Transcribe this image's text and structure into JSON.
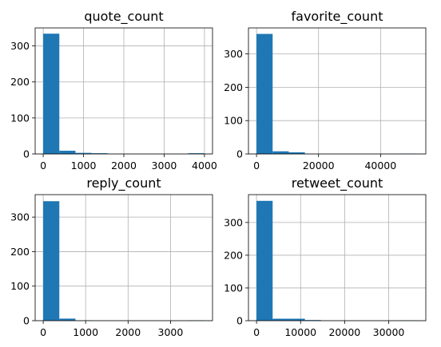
{
  "chart_data": [
    {
      "type": "bar",
      "title": "quote_count",
      "xlabel": "",
      "ylabel": "",
      "grid": true,
      "bar_color": "#1f77b4",
      "xlim": [
        -200,
        4200
      ],
      "ylim": [
        0,
        350
      ],
      "xticks": [
        0,
        1000,
        2000,
        3000,
        4000
      ],
      "xtick_labels": [
        "0",
        "1000",
        "2000",
        "3000",
        "4000"
      ],
      "yticks": [
        0,
        100,
        200,
        300
      ],
      "ytick_labels": [
        "0",
        "100",
        "200",
        "300"
      ],
      "bin_edges": [
        0,
        400,
        800,
        1200,
        1600,
        2000,
        2400,
        2800,
        3200,
        3600,
        4000
      ],
      "values": [
        334,
        9,
        3,
        2,
        0,
        0,
        0,
        0,
        0,
        2
      ]
    },
    {
      "type": "bar",
      "title": "favorite_count",
      "xlabel": "",
      "ylabel": "",
      "grid": true,
      "bar_color": "#1f77b4",
      "xlim": [
        -2600,
        54600
      ],
      "ylim": [
        0,
        378
      ],
      "xticks": [
        0,
        20000,
        40000
      ],
      "xtick_labels": [
        "0",
        "20000",
        "40000"
      ],
      "yticks": [
        0,
        100,
        200,
        300
      ],
      "ytick_labels": [
        "0",
        "100",
        "200",
        "300"
      ],
      "bin_edges": [
        0,
        5200,
        10400,
        15600,
        20800,
        26000,
        31200,
        36400,
        41600,
        46800,
        52000
      ],
      "values": [
        360,
        8,
        5,
        0,
        0,
        0,
        0,
        0,
        0,
        1
      ]
    },
    {
      "type": "bar",
      "title": "reply_count",
      "xlabel": "",
      "ylabel": "",
      "grid": true,
      "bar_color": "#1f77b4",
      "xlim": [
        -190,
        3990
      ],
      "ylim": [
        0,
        365
      ],
      "xticks": [
        0,
        1000,
        2000,
        3000
      ],
      "xtick_labels": [
        "0",
        "1000",
        "2000",
        "3000"
      ],
      "yticks": [
        0,
        100,
        200,
        300
      ],
      "ytick_labels": [
        "0",
        "100",
        "200",
        "300"
      ],
      "bin_edges": [
        0,
        380,
        760,
        1140,
        1520,
        1900,
        2280,
        2660,
        3040,
        3420,
        3800
      ],
      "values": [
        346,
        6,
        1,
        0,
        0,
        0,
        0,
        0,
        0,
        1
      ]
    },
    {
      "type": "bar",
      "title": "retweet_count",
      "xlabel": "",
      "ylabel": "",
      "grid": true,
      "bar_color": "#1f77b4",
      "xlim": [
        -1830,
        38430
      ],
      "ylim": [
        0,
        385
      ],
      "xticks": [
        0,
        10000,
        20000,
        30000
      ],
      "xtick_labels": [
        "0",
        "10000",
        "20000",
        "30000"
      ],
      "yticks": [
        0,
        100,
        200,
        300
      ],
      "ytick_labels": [
        "0",
        "100",
        "200",
        "300"
      ],
      "bin_edges": [
        0,
        3660,
        7320,
        10980,
        14640,
        18300,
        21960,
        25620,
        29280,
        32940,
        36600
      ],
      "values": [
        366,
        6,
        6,
        2,
        0,
        0,
        0,
        0,
        0,
        1
      ]
    }
  ]
}
